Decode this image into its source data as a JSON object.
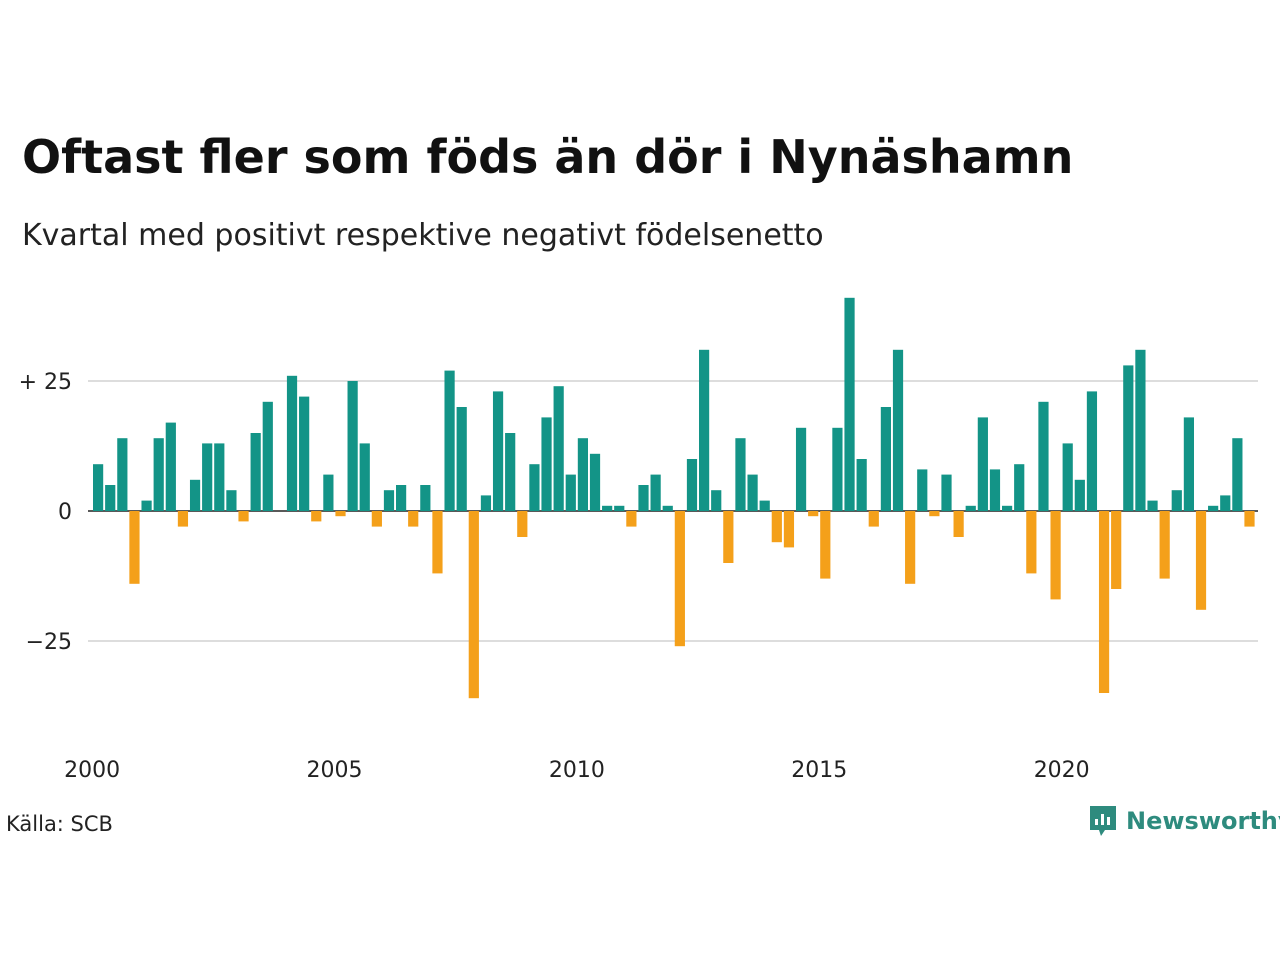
{
  "title": "Oftast fler som föds än dör i Nynäshamn",
  "subtitle": "Kvartal med positivt respektive negativt födelsenetto",
  "source": "Källa: SCB",
  "brand": {
    "name": "Newsworthy",
    "icon": "newsworthy-logo-icon",
    "color": "#2e8b7e"
  },
  "colors": {
    "positive": "#139487",
    "negative": "#f4a01a",
    "grid": "#dddddd"
  },
  "chart_data": {
    "type": "bar",
    "x_start": 2000.0,
    "x_step": 0.25,
    "values": [
      9,
      5,
      14,
      -14,
      2,
      14,
      17,
      -3,
      6,
      13,
      13,
      4,
      -2,
      15,
      21,
      0,
      26,
      22,
      -2,
      7,
      -1,
      25,
      13,
      -3,
      4,
      5,
      -3,
      5,
      -12,
      27,
      20,
      -36,
      3,
      23,
      15,
      -5,
      9,
      18,
      24,
      7,
      14,
      11,
      1,
      1,
      -3,
      5,
      7,
      1,
      -26,
      10,
      31,
      4,
      -10,
      14,
      7,
      2,
      -6,
      -7,
      16,
      -1,
      -13,
      16,
      41,
      10,
      -3,
      20,
      31,
      -14,
      8,
      -1,
      7,
      -5,
      1,
      18,
      8,
      1,
      9,
      -12,
      21,
      -17,
      13,
      6,
      23,
      -35,
      -15,
      28,
      31,
      2,
      -13,
      4,
      18,
      -19,
      1,
      3,
      14,
      -3
    ],
    "y_ticks": [
      {
        "value": 25,
        "label": "+ 25"
      },
      {
        "value": 0,
        "label": "0"
      },
      {
        "value": -25,
        "label": "−25"
      }
    ],
    "x_ticks": [
      "2000",
      "2005",
      "2010",
      "2015",
      "2020"
    ],
    "ylim": [
      -40,
      43
    ],
    "grid": true
  }
}
